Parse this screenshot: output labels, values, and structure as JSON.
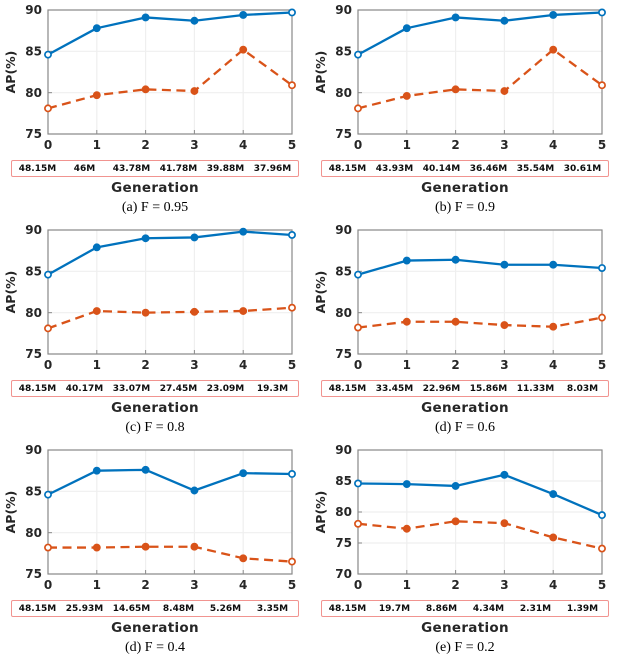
{
  "figure": {
    "layout": {
      "cols": 2,
      "rows": 3
    },
    "colors": {
      "solid_series": "#0072BD",
      "dashed_series": "#D95319",
      "grid_line": "#EFEFEF",
      "axis_box": "#8A8A8A",
      "tick_label": "#262626",
      "param_box_border": "#F19490"
    }
  },
  "chart_data": [
    {
      "type": "line",
      "caption": "(a) F = 0.95",
      "xlabel": "Generation",
      "ylabel": "AP(%)",
      "x": [
        0,
        1,
        2,
        3,
        4,
        5
      ],
      "xlim": [
        0,
        5
      ],
      "ylim": [
        75,
        90
      ],
      "yticks": [
        75,
        80,
        85,
        90
      ],
      "xticks": [
        0,
        1,
        2,
        3,
        4,
        5
      ],
      "grid": true,
      "legend": "none",
      "series": [
        {
          "name": "solid-line-series",
          "color": "#0072BD",
          "line": "solid",
          "marker": "circle",
          "values": [
            84.6,
            87.8,
            89.1,
            88.7,
            89.4,
            89.7
          ]
        },
        {
          "name": "dashed-line-series",
          "color": "#D95319",
          "line": "dashed",
          "marker": "circle",
          "values": [
            78.1,
            79.7,
            80.4,
            80.2,
            85.2,
            80.9
          ]
        }
      ],
      "param_labels": [
        "48.15M",
        "46M",
        "43.78M",
        "41.78M",
        "39.88M",
        "37.96M"
      ]
    },
    {
      "type": "line",
      "caption": "(b) F = 0.9",
      "xlabel": "Generation",
      "ylabel": "AP(%)",
      "x": [
        0,
        1,
        2,
        3,
        4,
        5
      ],
      "xlim": [
        0,
        5
      ],
      "ylim": [
        75,
        90
      ],
      "yticks": [
        75,
        80,
        85,
        90
      ],
      "xticks": [
        0,
        1,
        2,
        3,
        4,
        5
      ],
      "grid": true,
      "legend": "none",
      "series": [
        {
          "name": "solid-line-series",
          "color": "#0072BD",
          "line": "solid",
          "marker": "circle",
          "values": [
            84.6,
            87.8,
            89.1,
            88.7,
            89.4,
            89.7
          ]
        },
        {
          "name": "dashed-line-series",
          "color": "#D95319",
          "line": "dashed",
          "marker": "circle",
          "values": [
            78.1,
            79.6,
            80.4,
            80.2,
            85.2,
            80.9
          ]
        }
      ],
      "param_labels": [
        "48.15M",
        "43.93M",
        "40.14M",
        "36.46M",
        "35.54M",
        "30.61M"
      ]
    },
    {
      "type": "line",
      "caption": "(c) F = 0.8",
      "xlabel": "Generation",
      "ylabel": "AP(%)",
      "x": [
        0,
        1,
        2,
        3,
        4,
        5
      ],
      "xlim": [
        0,
        5
      ],
      "ylim": [
        75,
        90
      ],
      "yticks": [
        75,
        80,
        85,
        90
      ],
      "xticks": [
        0,
        1,
        2,
        3,
        4,
        5
      ],
      "grid": true,
      "legend": "none",
      "series": [
        {
          "name": "solid-line-series",
          "color": "#0072BD",
          "line": "solid",
          "marker": "circle",
          "values": [
            84.6,
            87.9,
            89.0,
            89.1,
            89.8,
            89.4
          ]
        },
        {
          "name": "dashed-line-series",
          "color": "#D95319",
          "line": "dashed",
          "marker": "circle",
          "values": [
            78.1,
            80.2,
            80.0,
            80.1,
            80.2,
            80.6
          ]
        }
      ],
      "param_labels": [
        "48.15M",
        "40.17M",
        "33.07M",
        "27.45M",
        "23.09M",
        "19.3M"
      ]
    },
    {
      "type": "line",
      "caption": "(d) F = 0.6",
      "xlabel": "Generation",
      "ylabel": "AP(%)",
      "x": [
        0,
        1,
        2,
        3,
        4,
        5
      ],
      "xlim": [
        0,
        5
      ],
      "ylim": [
        75,
        90
      ],
      "yticks": [
        75,
        80,
        85,
        90
      ],
      "xticks": [
        0,
        1,
        2,
        3,
        4,
        5
      ],
      "grid": true,
      "legend": "none",
      "series": [
        {
          "name": "solid-line-series",
          "color": "#0072BD",
          "line": "solid",
          "marker": "circle",
          "values": [
            84.6,
            86.3,
            86.4,
            85.8,
            85.8,
            85.4
          ]
        },
        {
          "name": "dashed-line-series",
          "color": "#D95319",
          "line": "dashed",
          "marker": "circle",
          "values": [
            78.2,
            78.9,
            78.9,
            78.5,
            78.3,
            79.4
          ]
        }
      ],
      "param_labels": [
        "48.15M",
        "33.45M",
        "22.96M",
        "15.86M",
        "11.33M",
        "8.03M"
      ]
    },
    {
      "type": "line",
      "caption": "(d) F = 0.4",
      "xlabel": "Generation",
      "ylabel": "AP(%)",
      "x": [
        0,
        1,
        2,
        3,
        4,
        5
      ],
      "xlim": [
        0,
        5
      ],
      "ylim": [
        75,
        90
      ],
      "yticks": [
        75,
        80,
        85,
        90
      ],
      "xticks": [
        0,
        1,
        2,
        3,
        4,
        5
      ],
      "grid": true,
      "legend": "none",
      "series": [
        {
          "name": "solid-line-series",
          "color": "#0072BD",
          "line": "solid",
          "marker": "circle",
          "values": [
            84.6,
            87.5,
            87.6,
            85.1,
            87.2,
            87.1
          ]
        },
        {
          "name": "dashed-line-series",
          "color": "#D95319",
          "line": "dashed",
          "marker": "circle",
          "values": [
            78.2,
            78.2,
            78.3,
            78.3,
            76.9,
            76.5
          ]
        }
      ],
      "param_labels": [
        "48.15M",
        "25.93M",
        "14.65M",
        "8.48M",
        "5.26M",
        "3.35M"
      ]
    },
    {
      "type": "line",
      "caption": "(e) F = 0.2",
      "xlabel": "Generation",
      "ylabel": "AP(%)",
      "x": [
        0,
        1,
        2,
        3,
        4,
        5
      ],
      "xlim": [
        0,
        5
      ],
      "ylim": [
        70,
        90
      ],
      "yticks": [
        70,
        75,
        80,
        85,
        90
      ],
      "xticks": [
        0,
        1,
        2,
        3,
        4,
        5
      ],
      "grid": true,
      "legend": "none",
      "series": [
        {
          "name": "solid-line-series",
          "color": "#0072BD",
          "line": "solid",
          "marker": "circle",
          "values": [
            84.6,
            84.5,
            84.2,
            86.0,
            82.9,
            79.5
          ]
        },
        {
          "name": "dashed-line-series",
          "color": "#D95319",
          "line": "dashed",
          "marker": "circle",
          "values": [
            78.1,
            77.3,
            78.5,
            78.2,
            75.9,
            74.1
          ]
        }
      ],
      "param_labels": [
        "48.15M",
        "19.7M",
        "8.86M",
        "4.34M",
        "2.31M",
        "1.39M"
      ]
    }
  ]
}
